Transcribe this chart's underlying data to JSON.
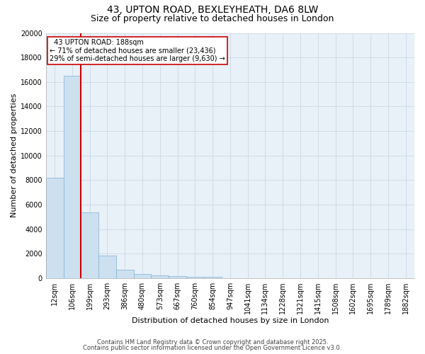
{
  "title1": "43, UPTON ROAD, BEXLEYHEATH, DA6 8LW",
  "title2": "Size of property relative to detached houses in London",
  "xlabel": "Distribution of detached houses by size in London",
  "ylabel": "Number of detached properties",
  "categories": [
    "12sqm",
    "106sqm",
    "199sqm",
    "293sqm",
    "386sqm",
    "480sqm",
    "573sqm",
    "667sqm",
    "760sqm",
    "854sqm",
    "947sqm",
    "1041sqm",
    "1134sqm",
    "1228sqm",
    "1321sqm",
    "1415sqm",
    "1508sqm",
    "1602sqm",
    "1695sqm",
    "1789sqm",
    "1882sqm"
  ],
  "values": [
    8200,
    16500,
    5350,
    1850,
    700,
    320,
    220,
    155,
    120,
    90,
    0,
    0,
    0,
    0,
    0,
    0,
    0,
    0,
    0,
    0,
    0
  ],
  "bar_color": "#cce0f0",
  "bar_edge_color": "#7fb3d3",
  "vline_color": "#cc0000",
  "annotation_text": "  43 UPTON ROAD: 188sqm\n← 71% of detached houses are smaller (23,436)\n29% of semi-detached houses are larger (9,630) →",
  "annotation_box_color": "#ffffff",
  "annotation_box_edge": "#cc0000",
  "ylim": [
    0,
    20000
  ],
  "yticks": [
    0,
    2000,
    4000,
    6000,
    8000,
    10000,
    12000,
    14000,
    16000,
    18000,
    20000
  ],
  "ytick_labels": [
    "0",
    "2000",
    "4000",
    "6000",
    "8000",
    "10000",
    "12000",
    "14000",
    "16000",
    "18000",
    "20000"
  ],
  "footer1": "Contains HM Land Registry data © Crown copyright and database right 2025.",
  "footer2": "Contains public sector information licensed under the Open Government Licence v3.0.",
  "background_color": "#ffffff",
  "plot_bg_color": "#e8f0f8",
  "grid_color": "#c8d4e0",
  "title_fontsize": 10,
  "subtitle_fontsize": 9,
  "ylabel_fontsize": 8,
  "xlabel_fontsize": 8,
  "tick_fontsize": 7,
  "annot_fontsize": 7,
  "footer_fontsize": 6
}
